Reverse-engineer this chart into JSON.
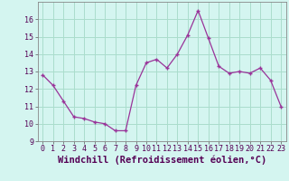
{
  "x": [
    0,
    1,
    2,
    3,
    4,
    5,
    6,
    7,
    8,
    9,
    10,
    11,
    12,
    13,
    14,
    15,
    16,
    17,
    18,
    19,
    20,
    21,
    22,
    23
  ],
  "y": [
    12.8,
    12.2,
    11.3,
    10.4,
    10.3,
    10.1,
    10.0,
    9.6,
    9.6,
    12.2,
    13.5,
    13.7,
    13.2,
    14.0,
    15.1,
    16.5,
    14.9,
    13.3,
    12.9,
    13.0,
    12.9,
    13.2,
    12.5,
    11.0
  ],
  "xlabel": "Windchill (Refroidissement éolien,°C)",
  "ylim": [
    9,
    17
  ],
  "xlim_min": -0.5,
  "xlim_max": 23.5,
  "yticks": [
    9,
    10,
    11,
    12,
    13,
    14,
    15,
    16
  ],
  "xticks": [
    0,
    1,
    2,
    3,
    4,
    5,
    6,
    7,
    8,
    9,
    10,
    11,
    12,
    13,
    14,
    15,
    16,
    17,
    18,
    19,
    20,
    21,
    22,
    23
  ],
  "line_color": "#993399",
  "marker": "+",
  "bg_color": "#d4f5f0",
  "grid_color": "#aaddcc",
  "tick_label_fontsize": 6,
  "xlabel_fontsize": 7.5
}
